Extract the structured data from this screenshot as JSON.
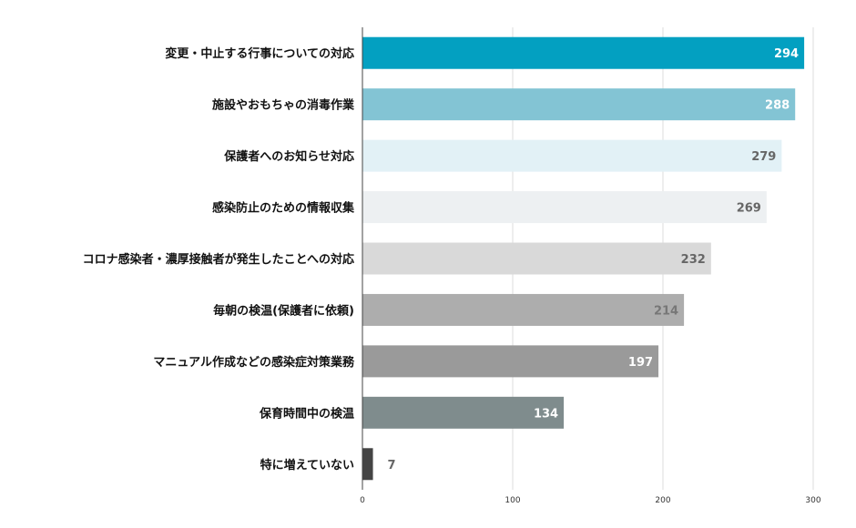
{
  "chart_data": {
    "type": "bar",
    "orientation": "horizontal",
    "title": "",
    "xlabel": "",
    "ylabel": "",
    "categories": [
      "変更・中止する行事についての対応",
      "施設やおもちゃの消毒作業",
      "保護者へのお知らせ対応",
      "感染防止のための情報収集",
      "コロナ感染者・濃厚接触者が発生したことへの対応",
      "毎朝の検温(保護者に依頼)",
      "マニュアル作成などの感染症対策業務",
      "保育時間中の検温",
      "特に増えていない"
    ],
    "values": [
      294,
      288,
      279,
      269,
      232,
      214,
      197,
      134,
      7
    ],
    "bar_colors": [
      "#03a0c1",
      "#83c4d4",
      "#e2f1f6",
      "#edf0f2",
      "#d9d9d9",
      "#adadad",
      "#9a9a9a",
      "#7f8c8d",
      "#444444"
    ],
    "value_label_colors": [
      "#ffffff",
      "#ffffff",
      "#666666",
      "#666666",
      "#666666",
      "#777777",
      "#ffffff",
      "#ffffff",
      "#666666"
    ],
    "xlim": [
      0,
      300
    ],
    "xticks": [
      0,
      100,
      200,
      300
    ],
    "grid": true,
    "legend": "none"
  }
}
